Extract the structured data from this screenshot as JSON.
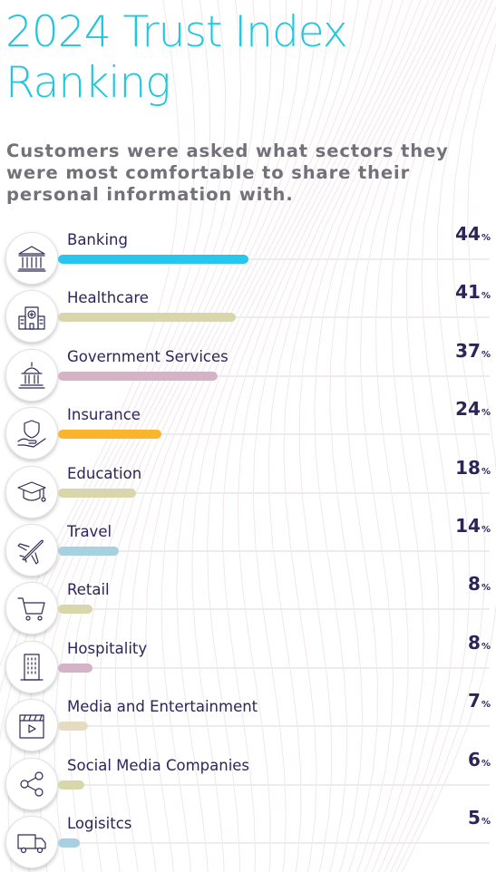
{
  "title_line1": "2024 Trust Index",
  "title_line2": "Ranking",
  "subtitle": "Customers were asked what sectors they were most comfortable to share their personal information with.",
  "percent_symbol": "%",
  "colors": {
    "title": "#1fc7df",
    "text": "#2c2658",
    "subtitle": "#747279",
    "banking": "#27c6ee",
    "insurance": "#fbb52d",
    "khaki": "#d8d6ab",
    "mauve": "#d4b3c6",
    "light_blue": "#a7d1e0"
  },
  "chart_data": {
    "type": "bar",
    "orientation": "horizontal",
    "categories": [
      "Banking",
      "Healthcare",
      "Government Services",
      "Insurance",
      "Education",
      "Travel",
      "Retail",
      "Hospitality",
      "Media and Entertainment",
      "Social Media Companies",
      "Logisitcs"
    ],
    "values": [
      44,
      41,
      37,
      24,
      18,
      14,
      8,
      8,
      7,
      6,
      5
    ],
    "value_suffix": "%",
    "icons": [
      "bank-icon",
      "hospital-icon",
      "government-building-icon",
      "insurance-shield-hand-icon",
      "graduation-cap-icon",
      "airplane-icon",
      "shopping-cart-icon",
      "hotel-building-icon",
      "media-clapperboard-icon",
      "share-network-icon",
      "delivery-truck-icon"
    ],
    "bar_colors": [
      "#27c6ee",
      "#d8d6ab",
      "#d4b3c6",
      "#fbb52d",
      "#d8d6ab",
      "#a7d1e0",
      "#d8d6ab",
      "#d4b3c6",
      "#e5dcc0",
      "#d8d6ab",
      "#a7d1e0"
    ],
    "xlim": [
      0,
      100
    ],
    "grid": false,
    "legend": "none"
  }
}
